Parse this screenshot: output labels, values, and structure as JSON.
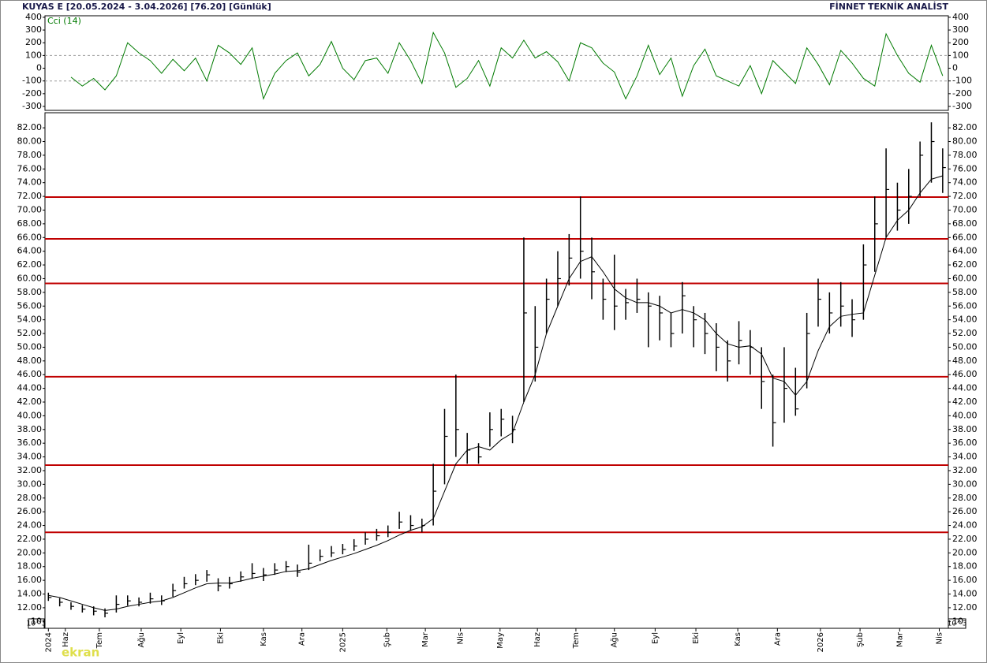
{
  "header": {
    "left": "KUYAS E  [20.05.2024 - 3.04.2026]  [76.20]  [Günlük]",
    "right": "FİNNET TEKNİK ANALİST",
    "scale_note": "10^3",
    "watermark": "ekran"
  },
  "chart_data": [
    {
      "type": "line",
      "title": "Cci (14)",
      "color": "#007a00",
      "ylim": [
        -331,
        412
      ],
      "yticks": [
        400,
        300,
        200,
        100,
        0,
        -100,
        -200,
        -300
      ],
      "reference_lines": [
        100,
        -100
      ],
      "values": [
        null,
        null,
        -70,
        -140,
        -80,
        -170,
        -60,
        200,
        120,
        60,
        -40,
        70,
        -20,
        80,
        -100,
        180,
        120,
        30,
        160,
        -240,
        -40,
        60,
        120,
        -60,
        30,
        210,
        0,
        -90,
        60,
        80,
        -40,
        200,
        60,
        -120,
        280,
        120,
        -150,
        -80,
        60,
        -140,
        160,
        80,
        220,
        80,
        130,
        50,
        -100,
        200,
        160,
        40,
        -30,
        -240,
        -60,
        180,
        -50,
        80,
        -220,
        20,
        150,
        -60,
        -100,
        -140,
        20,
        -200,
        60,
        -30,
        -120,
        160,
        30,
        -130,
        140,
        40,
        -80,
        -140,
        270,
        100,
        -40,
        -110,
        180,
        -60
      ]
    },
    {
      "type": "ohlc",
      "color": "#000000",
      "level_color": "#c00000",
      "levels": [
        23.0,
        32.8,
        45.7,
        59.3,
        65.8,
        71.9
      ],
      "xlim": [
        -0.3,
        79.5
      ],
      "xticks": [
        {
          "value": 0,
          "label": "2024"
        },
        {
          "value": 1.5,
          "label": "Haz"
        },
        {
          "value": 4.5,
          "label": "Tem"
        },
        {
          "value": 8.2,
          "label": "Ağu"
        },
        {
          "value": 11.7,
          "label": "Eyl"
        },
        {
          "value": 15.2,
          "label": "Eki"
        },
        {
          "value": 19,
          "label": "Kas"
        },
        {
          "value": 22.4,
          "label": "Ara"
        },
        {
          "value": 26,
          "label": "2025"
        },
        {
          "value": 29.9,
          "label": "Şub"
        },
        {
          "value": 33.3,
          "label": "Mar"
        },
        {
          "value": 36.4,
          "label": "Nis"
        },
        {
          "value": 39.9,
          "label": "May"
        },
        {
          "value": 43.2,
          "label": "Haz"
        },
        {
          "value": 46.6,
          "label": "Tem"
        },
        {
          "value": 50,
          "label": "Ağu"
        },
        {
          "value": 53.6,
          "label": "Eyl"
        },
        {
          "value": 57.2,
          "label": "Eki"
        },
        {
          "value": 60.9,
          "label": "Kas"
        },
        {
          "value": 64.4,
          "label": "Ara"
        },
        {
          "value": 68.2,
          "label": "2026"
        },
        {
          "value": 71.7,
          "label": "Şub"
        },
        {
          "value": 75.2,
          "label": "Mar"
        },
        {
          "value": 78.7,
          "label": "Nis"
        }
      ],
      "ylim": [
        9,
        84.2
      ],
      "yticks": [
        {
          "value": 82,
          "label": "82.00"
        },
        {
          "value": 80,
          "label": "80.00"
        },
        {
          "value": 78,
          "label": "78.00"
        },
        {
          "value": 76,
          "label": "76.00"
        },
        {
          "value": 74,
          "label": "74.00"
        },
        {
          "value": 72,
          "label": "72.00"
        },
        {
          "value": 70,
          "label": "70.00"
        },
        {
          "value": 68,
          "label": "68.00"
        },
        {
          "value": 66,
          "label": "66.00"
        },
        {
          "value": 64,
          "label": "64.00"
        },
        {
          "value": 62,
          "label": "62.00"
        },
        {
          "value": 60,
          "label": "60.00"
        },
        {
          "value": 58,
          "label": "58.00"
        },
        {
          "value": 56,
          "label": "56.00"
        },
        {
          "value": 54,
          "label": "54.00"
        },
        {
          "value": 52,
          "label": "52.00"
        },
        {
          "value": 50,
          "label": "50.00"
        },
        {
          "value": 48,
          "label": "48.00"
        },
        {
          "value": 46,
          "label": "46.00"
        },
        {
          "value": 44,
          "label": "44.00"
        },
        {
          "value": 42,
          "label": "42.00"
        },
        {
          "value": 40,
          "label": "40.00"
        },
        {
          "value": 38,
          "label": "38.00"
        },
        {
          "value": 36,
          "label": "36.00"
        },
        {
          "value": 34,
          "label": "34.00"
        },
        {
          "value": 32,
          "label": "32.00"
        },
        {
          "value": 30,
          "label": "30.00"
        },
        {
          "value": 28,
          "label": "28.00"
        },
        {
          "value": 26,
          "label": "26.00"
        },
        {
          "value": 24,
          "label": "24.00"
        },
        {
          "value": 22,
          "label": "22.00"
        },
        {
          "value": 20,
          "label": "20.00"
        },
        {
          "value": 18,
          "label": "18.00"
        },
        {
          "value": 16,
          "label": "16.00"
        },
        {
          "value": 14,
          "label": "14.00"
        },
        {
          "value": 12,
          "label": "12.00"
        },
        {
          "value": 10,
          "label": "10"
        }
      ],
      "high": [
        14.2,
        13.4,
        12.8,
        12.4,
        12.2,
        11.9,
        13.8,
        13.8,
        13.5,
        14.2,
        13.8,
        15.5,
        16.5,
        16.9,
        17.5,
        16.3,
        16.5,
        17.3,
        18.5,
        17.8,
        18.5,
        18.8,
        18.3,
        21.2,
        20.5,
        21.0,
        21.3,
        22.0,
        23.0,
        23.5,
        24.0,
        26.0,
        25.5,
        25.0,
        33.0,
        41.0,
        46.0,
        37.5,
        36.0,
        40.5,
        41.0,
        40.0,
        66.0,
        56.0,
        60.0,
        64.0,
        66.5,
        72.0,
        66.0,
        60.0,
        63.5,
        58.5,
        60.0,
        58.0,
        57.5,
        55.0,
        59.5,
        56.0,
        55.0,
        53.5,
        51.0,
        53.8,
        52.5,
        50.0,
        46.0,
        50.0,
        47.0,
        55.0,
        60.0,
        58.0,
        59.5,
        57.0,
        65.0,
        72.0,
        79.0,
        74.0,
        76.0,
        80.0,
        82.8,
        79.0
      ],
      "low": [
        13.0,
        12.2,
        11.7,
        11.3,
        10.9,
        10.6,
        11.3,
        12.3,
        12.2,
        12.6,
        12.4,
        13.6,
        14.8,
        15.3,
        15.8,
        14.4,
        14.8,
        15.8,
        16.2,
        15.9,
        16.8,
        17.2,
        16.5,
        17.5,
        18.8,
        19.4,
        19.8,
        20.3,
        21.2,
        21.8,
        22.3,
        23.5,
        23.2,
        23.0,
        24.0,
        30.0,
        34.0,
        33.0,
        33.0,
        35.5,
        37.0,
        36.0,
        42.0,
        45.0,
        52.0,
        56.0,
        59.0,
        60.0,
        57.0,
        54.0,
        52.5,
        54.0,
        55.0,
        50.0,
        51.0,
        50.0,
        52.0,
        50.0,
        49.0,
        46.5,
        45.0,
        47.5,
        46.0,
        41.0,
        35.5,
        39.0,
        40.0,
        44.0,
        53.0,
        52.0,
        53.0,
        51.5,
        54.0,
        61.0,
        66.0,
        67.0,
        68.0,
        72.0,
        74.0,
        72.5
      ],
      "close": [
        13.5,
        12.8,
        12.2,
        11.8,
        11.5,
        11.2,
        12.5,
        13.0,
        12.8,
        13.3,
        13.0,
        14.5,
        15.5,
        16.0,
        16.8,
        15.2,
        15.5,
        16.5,
        17.0,
        16.8,
        17.5,
        18.0,
        17.2,
        18.5,
        19.5,
        20.0,
        20.5,
        21.0,
        22.0,
        22.5,
        23.0,
        24.5,
        24.0,
        24.0,
        29.0,
        37.0,
        38.0,
        35.0,
        34.0,
        38.0,
        39.5,
        38.0,
        55.0,
        50.0,
        57.0,
        60.0,
        63.0,
        64.0,
        61.0,
        57.0,
        56.0,
        56.5,
        57.0,
        56.0,
        55.0,
        52.0,
        57.5,
        54.0,
        52.0,
        50.0,
        48.0,
        51.0,
        50.0,
        45.0,
        39.0,
        44.0,
        41.0,
        52.0,
        57.0,
        55.0,
        56.0,
        54.0,
        62.0,
        68.0,
        73.0,
        70.0,
        72.0,
        78.0,
        80.0,
        76.2
      ],
      "ma": [
        13.8,
        13.5,
        13.0,
        12.5,
        12.0,
        11.6,
        11.8,
        12.2,
        12.5,
        12.8,
        13.0,
        13.5,
        14.2,
        14.9,
        15.5,
        15.6,
        15.6,
        15.9,
        16.3,
        16.6,
        16.9,
        17.3,
        17.4,
        17.7,
        18.3,
        18.9,
        19.4,
        19.9,
        20.5,
        21.1,
        21.8,
        22.6,
        23.3,
        23.8,
        25.0,
        29.0,
        33.0,
        35.0,
        35.5,
        35.0,
        36.5,
        37.5,
        42.0,
        46.0,
        52.0,
        56.0,
        60.0,
        62.5,
        63.2,
        61.0,
        58.5,
        57.2,
        56.5,
        56.5,
        56.0,
        55.0,
        55.5,
        55.0,
        54.0,
        52.0,
        50.5,
        50.0,
        50.2,
        49.0,
        45.5,
        45.0,
        43.0,
        45.0,
        49.5,
        53.0,
        54.5,
        54.8,
        55.0,
        60.5,
        66.0,
        68.5,
        70.0,
        72.5,
        74.5,
        75.0
      ]
    }
  ]
}
